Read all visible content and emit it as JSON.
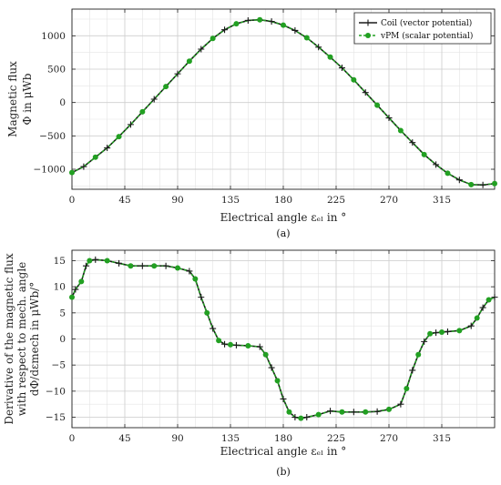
{
  "chart_data": [
    {
      "type": "line",
      "panel_label": "(a)",
      "xlabel": "Electrical angle ε_el in °",
      "ylabel_lines": [
        "Magnetic flux",
        "Φ in μWb"
      ],
      "xlim": [
        0,
        360
      ],
      "ylim": [
        -1300,
        1400
      ],
      "xticks": [
        0,
        45,
        90,
        135,
        180,
        225,
        270,
        315
      ],
      "yticks": [
        -1000,
        -500,
        0,
        500,
        1000
      ],
      "grid": true,
      "legend_position": "top-right",
      "series": [
        {
          "name": "Coil (vector potential)",
          "color": "#1a1a1a",
          "marker": "plus",
          "x": [
            0,
            10,
            20,
            30,
            40,
            50,
            60,
            70,
            80,
            90,
            100,
            110,
            120,
            130,
            140,
            150,
            160,
            170,
            180,
            190,
            200,
            210,
            220,
            230,
            240,
            250,
            260,
            270,
            280,
            290,
            300,
            310,
            320,
            330,
            340,
            350,
            360
          ],
          "y": [
            -1050,
            -960,
            -820,
            -680,
            -510,
            -330,
            -140,
            50,
            240,
            430,
            620,
            800,
            960,
            1090,
            1180,
            1230,
            1240,
            1215,
            1160,
            1080,
            970,
            830,
            680,
            520,
            340,
            150,
            -40,
            -230,
            -420,
            -600,
            -780,
            -930,
            -1060,
            -1160,
            -1230,
            -1235,
            -1215
          ]
        },
        {
          "name": "vPM (scalar potential)",
          "color": "#22a022",
          "marker": "circle",
          "x": [
            0,
            10,
            20,
            30,
            40,
            50,
            60,
            70,
            80,
            90,
            100,
            110,
            120,
            130,
            140,
            150,
            160,
            170,
            180,
            190,
            200,
            210,
            220,
            230,
            240,
            250,
            260,
            270,
            280,
            290,
            300,
            310,
            320,
            330,
            340,
            350,
            360
          ],
          "y": [
            -1050,
            -960,
            -820,
            -680,
            -510,
            -330,
            -140,
            50,
            240,
            430,
            620,
            800,
            960,
            1090,
            1180,
            1230,
            1240,
            1215,
            1160,
            1080,
            970,
            830,
            680,
            520,
            340,
            150,
            -40,
            -230,
            -420,
            -600,
            -780,
            -930,
            -1060,
            -1160,
            -1230,
            -1235,
            -1215
          ]
        }
      ]
    },
    {
      "type": "line",
      "panel_label": "(b)",
      "xlabel": "Electrical angle ε_el in °",
      "ylabel_lines": [
        "Derivative of the magnetic flux",
        "with respect to mech. angle",
        "dΦ/dε_mech in μWb/°"
      ],
      "xlim": [
        0,
        360
      ],
      "ylim": [
        -17,
        17
      ],
      "xticks": [
        0,
        45,
        90,
        135,
        180,
        225,
        270,
        315
      ],
      "yticks": [
        -15,
        -10,
        -5,
        0,
        5,
        10,
        15
      ],
      "grid": true,
      "series": [
        {
          "name": "Coil (vector potential)",
          "color": "#1a1a1a",
          "marker": "plus",
          "x": [
            0,
            3,
            8,
            12,
            15,
            20,
            30,
            40,
            50,
            60,
            70,
            80,
            90,
            100,
            105,
            110,
            115,
            120,
            125,
            130,
            135,
            140,
            150,
            160,
            165,
            170,
            175,
            180,
            185,
            190,
            195,
            200,
            210,
            220,
            230,
            240,
            250,
            260,
            270,
            280,
            285,
            290,
            295,
            300,
            305,
            310,
            315,
            320,
            330,
            340,
            345,
            350,
            355,
            360
          ],
          "y": [
            8,
            9.5,
            11,
            14,
            15,
            15.2,
            15,
            14.5,
            14,
            14,
            14,
            14,
            13.6,
            13,
            11.5,
            8,
            5,
            2,
            -0.3,
            -1.0,
            -1.1,
            -1.2,
            -1.3,
            -1.5,
            -3,
            -5.5,
            -8,
            -11.5,
            -14,
            -15,
            -15.2,
            -15,
            -14.5,
            -13.8,
            -14,
            -14,
            -14,
            -13.9,
            -13.5,
            -12.5,
            -9.5,
            -6,
            -3,
            -0.5,
            1,
            1.2,
            1.3,
            1.4,
            1.6,
            2.5,
            4,
            6,
            7.5,
            8
          ]
        },
        {
          "name": "vPM (scalar potential)",
          "color": "#22a022",
          "marker": "circle",
          "x": [
            0,
            3,
            8,
            12,
            15,
            20,
            30,
            40,
            50,
            60,
            70,
            80,
            90,
            100,
            105,
            110,
            115,
            120,
            125,
            130,
            135,
            140,
            150,
            160,
            165,
            170,
            175,
            180,
            185,
            190,
            195,
            200,
            210,
            220,
            230,
            240,
            250,
            260,
            270,
            280,
            285,
            290,
            295,
            300,
            305,
            310,
            315,
            320,
            330,
            340,
            345,
            350,
            355,
            360
          ],
          "y": [
            8,
            9.5,
            11,
            14,
            15,
            15.2,
            15,
            14.5,
            14,
            14,
            14,
            14,
            13.6,
            13,
            11.5,
            8,
            5,
            2,
            -0.3,
            -1.0,
            -1.1,
            -1.2,
            -1.3,
            -1.5,
            -3,
            -5.5,
            -8,
            -11.5,
            -14,
            -15,
            -15.2,
            -15,
            -14.5,
            -13.8,
            -14,
            -14,
            -14,
            -13.9,
            -13.5,
            -12.5,
            -9.5,
            -6,
            -3,
            -0.5,
            1,
            1.2,
            1.3,
            1.4,
            1.6,
            2.5,
            4,
            6,
            7.5,
            8
          ]
        }
      ]
    }
  ]
}
